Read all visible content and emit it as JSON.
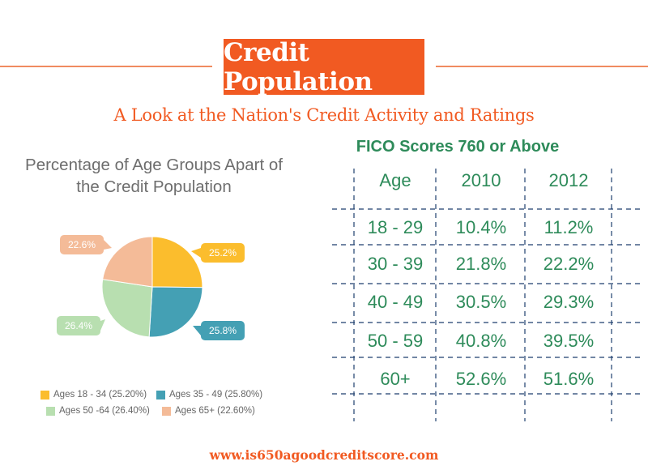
{
  "header": {
    "title": "Credit Population",
    "subtitle": "A Look at the Nation's Credit Activity and Ratings",
    "footer_url": "www.is650agoodcreditscore.com"
  },
  "colors": {
    "orange": "#f15a22",
    "green_text": "#2e8b5a",
    "grid_line": "#1f3f6e"
  },
  "chart_data": [
    {
      "type": "pie",
      "title_lines": [
        "Percentage of Age Groups Apart of",
        "the Credit Population"
      ],
      "slices": [
        {
          "label": "Ages 18 - 34 (25.20%)",
          "value": 25.2,
          "data_label": "25.2%",
          "color": "#fbbd2d"
        },
        {
          "label": "Ages 35 - 49 (25.80%)",
          "value": 25.8,
          "data_label": "25.8%",
          "color": "#44a0b4"
        },
        {
          "label": "Ages 50 -64 (26.40%)",
          "value": 26.4,
          "data_label": "26.4%",
          "color": "#b8dfb0"
        },
        {
          "label": "Ages 65+ (22.60%)",
          "value": 22.6,
          "data_label": "22.6%",
          "color": "#f4bb98"
        }
      ],
      "legend_position": "bottom"
    },
    {
      "type": "table",
      "title": "FICO Scores 760 or Above",
      "columns": [
        "Age",
        "2010",
        "2012"
      ],
      "rows": [
        [
          "18 - 29",
          "10.4%",
          "11.2%"
        ],
        [
          "30 - 39",
          "21.8%",
          "22.2%"
        ],
        [
          "40 - 49",
          "30.5%",
          "29.3%"
        ],
        [
          "50 - 59",
          "40.8%",
          "39.5%"
        ],
        [
          "60+",
          "52.6%",
          "51.6%"
        ]
      ]
    }
  ]
}
